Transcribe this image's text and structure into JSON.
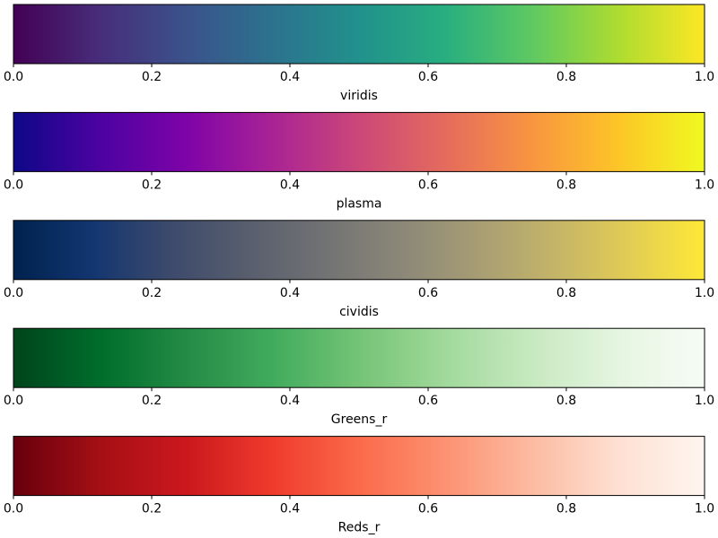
{
  "chart_data": [
    {
      "type": "colorbar",
      "xlabel": "viridis",
      "xlim": [
        0.0,
        1.0
      ],
      "ticks": [
        0.0,
        0.2,
        0.4,
        0.6,
        0.8,
        1.0
      ],
      "tick_labels": [
        "0.0",
        "0.2",
        "0.4",
        "0.6",
        "0.8",
        "1.0"
      ],
      "colors": [
        "#440154",
        "#472d7b",
        "#3b528b",
        "#2c728e",
        "#21918c",
        "#28ae80",
        "#5ec962",
        "#addc30",
        "#fde725"
      ]
    },
    {
      "type": "colorbar",
      "xlabel": "plasma",
      "xlim": [
        0.0,
        1.0
      ],
      "ticks": [
        0.0,
        0.2,
        0.4,
        0.6,
        0.8,
        1.0
      ],
      "tick_labels": [
        "0.0",
        "0.2",
        "0.4",
        "0.6",
        "0.8",
        "1.0"
      ],
      "colors": [
        "#0d0887",
        "#4c02a1",
        "#7e03a8",
        "#a92395",
        "#cc4778",
        "#e56b5d",
        "#f89540",
        "#fdc527",
        "#f0f921"
      ]
    },
    {
      "type": "colorbar",
      "xlabel": "cividis",
      "xlim": [
        0.0,
        1.0
      ],
      "ticks": [
        0.0,
        0.2,
        0.4,
        0.6,
        0.8,
        1.0
      ],
      "tick_labels": [
        "0.0",
        "0.2",
        "0.4",
        "0.6",
        "0.8",
        "1.0"
      ],
      "colors": [
        "#00224e",
        "#123570",
        "#3b496c",
        "#575d6d",
        "#707173",
        "#8a8678",
        "#a59c74",
        "#c3b369",
        "#e1cc55",
        "#fee838"
      ]
    },
    {
      "type": "colorbar",
      "xlabel": "Greens_r",
      "xlim": [
        0.0,
        1.0
      ],
      "ticks": [
        0.0,
        0.2,
        0.4,
        0.6,
        0.8,
        1.0
      ],
      "tick_labels": [
        "0.0",
        "0.2",
        "0.4",
        "0.6",
        "0.8",
        "1.0"
      ],
      "colors": [
        "#00441b",
        "#006d2c",
        "#238b45",
        "#41ab5d",
        "#74c476",
        "#a1d99b",
        "#c7e9c0",
        "#e5f5e0",
        "#f7fcf5"
      ]
    },
    {
      "type": "colorbar",
      "xlabel": "Reds_r",
      "xlim": [
        0.0,
        1.0
      ],
      "ticks": [
        0.0,
        0.2,
        0.4,
        0.6,
        0.8,
        1.0
      ],
      "tick_labels": [
        "0.0",
        "0.2",
        "0.4",
        "0.6",
        "0.8",
        "1.0"
      ],
      "colors": [
        "#67000d",
        "#a50f15",
        "#cb181d",
        "#ef3b2c",
        "#fb6a4a",
        "#fc9272",
        "#fcbba1",
        "#fee0d2",
        "#fff5f0"
      ]
    }
  ]
}
